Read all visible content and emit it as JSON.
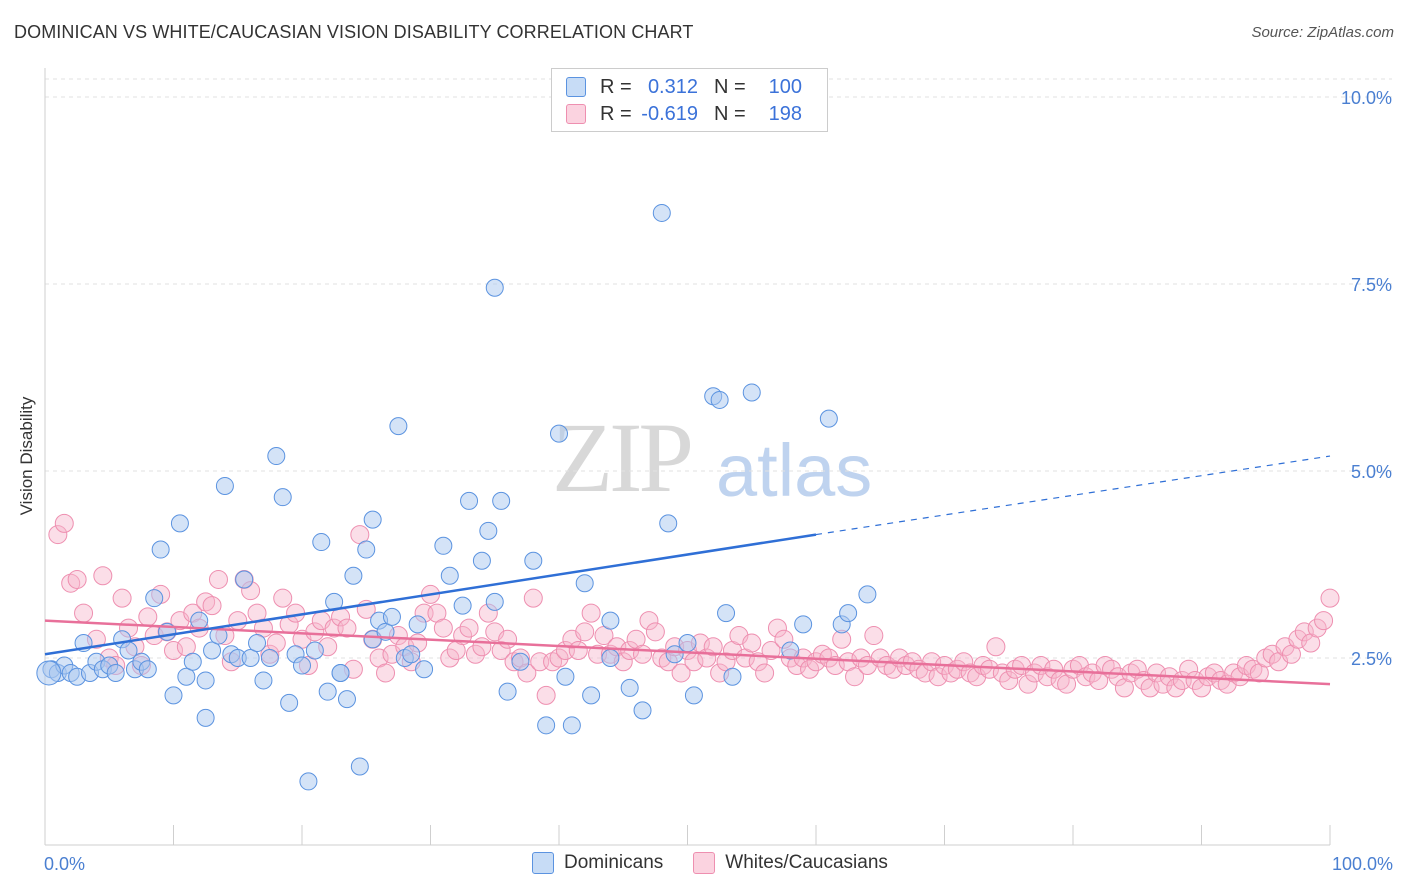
{
  "header": {
    "title": "DOMINICAN VS WHITE/CAUCASIAN VISION DISABILITY CORRELATION CHART",
    "source": "Source: ZipAtlas.com"
  },
  "watermark": {
    "left": "ZIP",
    "right": "atlas"
  },
  "legend": {
    "rows": [
      {
        "r_label": "R =",
        "r_value": "0.312",
        "n_label": "N =",
        "n_value": "100",
        "color": "#a9c8f0"
      },
      {
        "r_label": "R =",
        "r_value": "-0.619",
        "n_label": "N =",
        "n_value": "198",
        "color": "#f6b6cb"
      }
    ]
  },
  "bottom_legend": {
    "items": [
      {
        "label": "Dominicans",
        "color": "#a9c8f0"
      },
      {
        "label": "Whites/Caucasians",
        "color": "#f6b6cb"
      }
    ]
  },
  "chart_data": {
    "type": "scatter",
    "title": "DOMINICAN VS WHITE/CAUCASIAN VISION DISABILITY CORRELATION CHART",
    "xlabel": "",
    "ylabel": "Vision Disability",
    "xlim": [
      0,
      100
    ],
    "ylim": [
      0,
      10.5
    ],
    "x_tick_labels": [
      "0.0%",
      "100.0%"
    ],
    "y_ticks": [
      2.5,
      5.0,
      7.5,
      10.0
    ],
    "y_tick_labels": [
      "2.5%",
      "5.0%",
      "7.5%",
      "10.0%"
    ],
    "grid": true,
    "legend_placement": "top-center",
    "colors": {
      "dominicans": "#5b93e0",
      "whites": "#ee8fb0",
      "dominicans_line": "#2f6fd6",
      "whites_line": "#e8709a"
    },
    "series": [
      {
        "name": "Dominicans",
        "trend": {
          "x0": 0,
          "y0": 2.55,
          "x1": 60,
          "y1": 4.15,
          "dash_to_x": 100,
          "dash_to_y": 5.2
        },
        "points": [
          [
            0.5,
            2.35
          ],
          [
            1,
            2.3
          ],
          [
            1.5,
            2.4
          ],
          [
            2,
            2.3
          ],
          [
            2.5,
            2.25
          ],
          [
            3,
            2.7
          ],
          [
            3.5,
            2.3
          ],
          [
            4,
            2.45
          ],
          [
            4.5,
            2.35
          ],
          [
            5,
            2.4
          ],
          [
            5.5,
            2.3
          ],
          [
            6,
            2.75
          ],
          [
            6.5,
            2.6
          ],
          [
            7,
            2.35
          ],
          [
            7.5,
            2.45
          ],
          [
            8,
            2.35
          ],
          [
            8.5,
            3.3
          ],
          [
            9,
            3.95
          ],
          [
            9.5,
            2.85
          ],
          [
            10,
            2.0
          ],
          [
            10.5,
            4.3
          ],
          [
            11,
            2.25
          ],
          [
            11.5,
            2.45
          ],
          [
            12,
            3.0
          ],
          [
            12.5,
            1.7
          ],
          [
            13,
            2.6
          ],
          [
            13.5,
            2.8
          ],
          [
            14,
            4.8
          ],
          [
            14.5,
            2.55
          ],
          [
            15,
            2.5
          ],
          [
            15.5,
            3.55
          ],
          [
            16,
            2.5
          ],
          [
            16.5,
            2.7
          ],
          [
            17,
            2.2
          ],
          [
            17.5,
            2.5
          ],
          [
            18,
            5.2
          ],
          [
            18.5,
            4.65
          ],
          [
            19,
            1.9
          ],
          [
            19.5,
            2.55
          ],
          [
            20,
            2.4
          ],
          [
            20.5,
            0.85
          ],
          [
            21,
            2.6
          ],
          [
            21.5,
            4.05
          ],
          [
            22,
            2.05
          ],
          [
            22.5,
            3.25
          ],
          [
            23,
            2.3
          ],
          [
            23.5,
            1.95
          ],
          [
            24,
            3.6
          ],
          [
            24.5,
            1.05
          ],
          [
            25,
            3.95
          ],
          [
            25.5,
            2.75
          ],
          [
            26,
            3.0
          ],
          [
            26.5,
            2.85
          ],
          [
            27,
            3.05
          ],
          [
            27.5,
            5.6
          ],
          [
            28,
            2.5
          ],
          [
            28.5,
            2.55
          ],
          [
            29,
            2.95
          ],
          [
            29.5,
            2.35
          ],
          [
            31,
            4.0
          ],
          [
            31.5,
            3.6
          ],
          [
            32.5,
            3.2
          ],
          [
            33,
            4.6
          ],
          [
            34,
            3.8
          ],
          [
            34.5,
            4.2
          ],
          [
            35,
            3.25
          ],
          [
            35.5,
            4.6
          ],
          [
            36,
            2.05
          ],
          [
            37,
            2.45
          ],
          [
            38,
            3.8
          ],
          [
            39,
            1.6
          ],
          [
            40,
            5.5
          ],
          [
            40.5,
            2.25
          ],
          [
            41,
            1.6
          ],
          [
            42,
            3.5
          ],
          [
            42.5,
            2.0
          ],
          [
            44,
            3.0
          ],
          [
            45.5,
            2.1
          ],
          [
            46.5,
            1.8
          ],
          [
            48,
            8.45
          ],
          [
            48.5,
            4.3
          ],
          [
            49,
            2.55
          ],
          [
            50,
            2.7
          ],
          [
            50.5,
            2.0
          ],
          [
            52,
            6.0
          ],
          [
            52.5,
            5.95
          ],
          [
            53,
            3.1
          ],
          [
            53.5,
            2.25
          ],
          [
            55,
            6.05
          ],
          [
            58,
            2.6
          ],
          [
            59,
            2.95
          ],
          [
            61,
            5.7
          ],
          [
            62,
            2.95
          ],
          [
            62.5,
            3.1
          ],
          [
            64,
            3.35
          ],
          [
            35,
            7.45
          ],
          [
            25.5,
            4.35
          ],
          [
            23,
            2.3
          ],
          [
            12.5,
            2.2
          ],
          [
            44,
            2.5
          ]
        ]
      },
      {
        "name": "Whites/Caucasians",
        "trend": {
          "x0": 0,
          "y0": 3.0,
          "x1": 100,
          "y1": 2.15
        },
        "points": [
          [
            1,
            4.15
          ],
          [
            1.5,
            4.3
          ],
          [
            2,
            3.5
          ],
          [
            2.5,
            3.55
          ],
          [
            3,
            3.1
          ],
          [
            4,
            2.75
          ],
          [
            4.5,
            3.6
          ],
          [
            5,
            2.5
          ],
          [
            5.5,
            2.4
          ],
          [
            6,
            3.3
          ],
          [
            6.5,
            2.9
          ],
          [
            7,
            2.65
          ],
          [
            7.5,
            2.4
          ],
          [
            8,
            3.05
          ],
          [
            8.5,
            2.8
          ],
          [
            9,
            3.35
          ],
          [
            9.5,
            2.85
          ],
          [
            10,
            2.6
          ],
          [
            10.5,
            3.0
          ],
          [
            11,
            2.65
          ],
          [
            11.5,
            3.1
          ],
          [
            12,
            2.9
          ],
          [
            12.5,
            3.25
          ],
          [
            13,
            3.2
          ],
          [
            13.5,
            3.55
          ],
          [
            14,
            2.8
          ],
          [
            14.5,
            2.45
          ],
          [
            15,
            3.0
          ],
          [
            15.5,
            3.55
          ],
          [
            16,
            3.4
          ],
          [
            16.5,
            3.1
          ],
          [
            17,
            2.9
          ],
          [
            17.5,
            2.55
          ],
          [
            18,
            2.7
          ],
          [
            18.5,
            3.3
          ],
          [
            19,
            2.95
          ],
          [
            19.5,
            3.1
          ],
          [
            20,
            2.75
          ],
          [
            20.5,
            2.4
          ],
          [
            21,
            2.85
          ],
          [
            21.5,
            3.0
          ],
          [
            22,
            2.65
          ],
          [
            22.5,
            2.9
          ],
          [
            23,
            3.05
          ],
          [
            23.5,
            2.9
          ],
          [
            24,
            2.35
          ],
          [
            24.5,
            4.15
          ],
          [
            25,
            3.15
          ],
          [
            25.5,
            2.75
          ],
          [
            26,
            2.5
          ],
          [
            26.5,
            2.3
          ],
          [
            27,
            2.55
          ],
          [
            27.5,
            2.8
          ],
          [
            28,
            2.65
          ],
          [
            28.5,
            2.45
          ],
          [
            29,
            2.7
          ],
          [
            29.5,
            3.1
          ],
          [
            30,
            3.35
          ],
          [
            30.5,
            3.1
          ],
          [
            31,
            2.9
          ],
          [
            31.5,
            2.5
          ],
          [
            32,
            2.6
          ],
          [
            32.5,
            2.8
          ],
          [
            33,
            2.9
          ],
          [
            33.5,
            2.55
          ],
          [
            34,
            2.65
          ],
          [
            34.5,
            3.1
          ],
          [
            35,
            2.85
          ],
          [
            35.5,
            2.6
          ],
          [
            36,
            2.75
          ],
          [
            36.5,
            2.45
          ],
          [
            37,
            2.5
          ],
          [
            37.5,
            2.3
          ],
          [
            38,
            3.3
          ],
          [
            38.5,
            2.45
          ],
          [
            39,
            2.0
          ],
          [
            39.5,
            2.45
          ],
          [
            40,
            2.5
          ],
          [
            40.5,
            2.6
          ],
          [
            41,
            2.75
          ],
          [
            41.5,
            2.6
          ],
          [
            42,
            2.85
          ],
          [
            42.5,
            3.1
          ],
          [
            43,
            2.55
          ],
          [
            43.5,
            2.8
          ],
          [
            44,
            2.55
          ],
          [
            44.5,
            2.65
          ],
          [
            45,
            2.45
          ],
          [
            45.5,
            2.6
          ],
          [
            46,
            2.75
          ],
          [
            46.5,
            2.55
          ],
          [
            47,
            3.0
          ],
          [
            47.5,
            2.85
          ],
          [
            48,
            2.5
          ],
          [
            48.5,
            2.45
          ],
          [
            49,
            2.65
          ],
          [
            49.5,
            2.3
          ],
          [
            50,
            2.6
          ],
          [
            50.5,
            2.45
          ],
          [
            51,
            2.7
          ],
          [
            51.5,
            2.5
          ],
          [
            52,
            2.65
          ],
          [
            52.5,
            2.3
          ],
          [
            53,
            2.45
          ],
          [
            53.5,
            2.6
          ],
          [
            54,
            2.8
          ],
          [
            54.5,
            2.5
          ],
          [
            55,
            2.7
          ],
          [
            55.5,
            2.45
          ],
          [
            56,
            2.3
          ],
          [
            56.5,
            2.6
          ],
          [
            57,
            2.9
          ],
          [
            57.5,
            2.75
          ],
          [
            58,
            2.5
          ],
          [
            58.5,
            2.4
          ],
          [
            59,
            2.5
          ],
          [
            59.5,
            2.35
          ],
          [
            60,
            2.45
          ],
          [
            60.5,
            2.55
          ],
          [
            61,
            2.5
          ],
          [
            61.5,
            2.4
          ],
          [
            62,
            2.75
          ],
          [
            62.5,
            2.45
          ],
          [
            63,
            2.25
          ],
          [
            63.5,
            2.5
          ],
          [
            64,
            2.4
          ],
          [
            64.5,
            2.8
          ],
          [
            65,
            2.5
          ],
          [
            65.5,
            2.4
          ],
          [
            66,
            2.35
          ],
          [
            66.5,
            2.5
          ],
          [
            67,
            2.4
          ],
          [
            67.5,
            2.45
          ],
          [
            68,
            2.35
          ],
          [
            68.5,
            2.3
          ],
          [
            69,
            2.45
          ],
          [
            69.5,
            2.25
          ],
          [
            70,
            2.4
          ],
          [
            70.5,
            2.3
          ],
          [
            71,
            2.35
          ],
          [
            71.5,
            2.45
          ],
          [
            72,
            2.3
          ],
          [
            72.5,
            2.25
          ],
          [
            73,
            2.4
          ],
          [
            73.5,
            2.35
          ],
          [
            74,
            2.65
          ],
          [
            74.5,
            2.3
          ],
          [
            75,
            2.2
          ],
          [
            75.5,
            2.35
          ],
          [
            76,
            2.4
          ],
          [
            76.5,
            2.15
          ],
          [
            77,
            2.3
          ],
          [
            77.5,
            2.4
          ],
          [
            78,
            2.25
          ],
          [
            78.5,
            2.35
          ],
          [
            79,
            2.2
          ],
          [
            79.5,
            2.15
          ],
          [
            80,
            2.35
          ],
          [
            80.5,
            2.4
          ],
          [
            81,
            2.25
          ],
          [
            81.5,
            2.3
          ],
          [
            82,
            2.2
          ],
          [
            82.5,
            2.4
          ],
          [
            83,
            2.35
          ],
          [
            83.5,
            2.25
          ],
          [
            84,
            2.1
          ],
          [
            84.5,
            2.3
          ],
          [
            85,
            2.35
          ],
          [
            85.5,
            2.2
          ],
          [
            86,
            2.1
          ],
          [
            86.5,
            2.3
          ],
          [
            87,
            2.15
          ],
          [
            87.5,
            2.25
          ],
          [
            88,
            2.1
          ],
          [
            88.5,
            2.2
          ],
          [
            89,
            2.35
          ],
          [
            89.5,
            2.2
          ],
          [
            90,
            2.1
          ],
          [
            90.5,
            2.25
          ],
          [
            91,
            2.3
          ],
          [
            91.5,
            2.2
          ],
          [
            92,
            2.15
          ],
          [
            92.5,
            2.3
          ],
          [
            93,
            2.25
          ],
          [
            93.5,
            2.4
          ],
          [
            94,
            2.35
          ],
          [
            94.5,
            2.3
          ],
          [
            95,
            2.5
          ],
          [
            95.5,
            2.55
          ],
          [
            96,
            2.45
          ],
          [
            96.5,
            2.65
          ],
          [
            97,
            2.55
          ],
          [
            97.5,
            2.75
          ],
          [
            98,
            2.85
          ],
          [
            98.5,
            2.7
          ],
          [
            99,
            2.9
          ],
          [
            99.5,
            3.0
          ],
          [
            100,
            3.3
          ]
        ]
      }
    ]
  }
}
